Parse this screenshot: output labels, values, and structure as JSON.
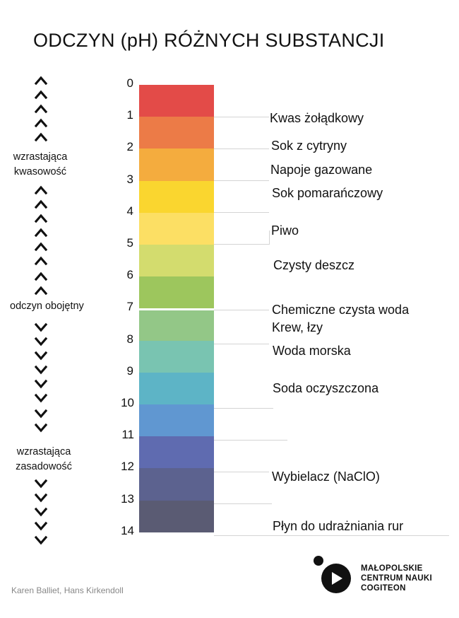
{
  "title": "ODCZYN (pH) RÓŻNYCH SUBSTANCJI",
  "scale": {
    "ticks": [
      "0",
      "1",
      "2",
      "3",
      "4",
      "5",
      "6",
      "7",
      "8",
      "9",
      "10",
      "11",
      "12",
      "13",
      "14"
    ],
    "bands": [
      {
        "from": 0,
        "to": 1,
        "color": "#e34b48"
      },
      {
        "from": 1,
        "to": 2,
        "color": "#ec7b47"
      },
      {
        "from": 2,
        "to": 3,
        "color": "#f4ac3e"
      },
      {
        "from": 3,
        "to": 4,
        "color": "#fad62f"
      },
      {
        "from": 4,
        "to": 5,
        "color": "#fcdf64"
      },
      {
        "from": 5,
        "to": 6,
        "color": "#d3dc6e"
      },
      {
        "from": 6,
        "to": 7,
        "color": "#9dc65d"
      },
      {
        "from": 7,
        "to": 8,
        "color": "#93c787"
      },
      {
        "from": 8,
        "to": 9,
        "color": "#79c4b1"
      },
      {
        "from": 9,
        "to": 10,
        "color": "#5db4c6"
      },
      {
        "from": 10,
        "to": 11,
        "color": "#6097d1"
      },
      {
        "from": 11,
        "to": 12,
        "color": "#5f6bb0"
      },
      {
        "from": 12,
        "to": 13,
        "color": "#5c628f"
      },
      {
        "from": 13,
        "to": 14,
        "color": "#5a5b73"
      }
    ]
  },
  "left_labels": {
    "acid": [
      "wzrastająca",
      "kwasowość"
    ],
    "neutral": "odczyn obojętny",
    "base": [
      "wzrastająca",
      "zasadowość"
    ]
  },
  "substances": [
    {
      "name": "Kwas żołądkowy",
      "ph": 1
    },
    {
      "name": "Sok z cytryny",
      "ph": 2
    },
    {
      "name": "Napoje gazowane",
      "ph": 2.5
    },
    {
      "name": "Sok pomarańczowy",
      "ph": 3.5
    },
    {
      "name": "Piwo",
      "ph": 4.5
    },
    {
      "name": "Czysty deszcz",
      "ph": 5.5
    },
    {
      "name": "Chemiczne czysta woda",
      "ph": 7
    },
    {
      "name": "Krew, łzy",
      "ph": 7.4
    },
    {
      "name": "Woda morska",
      "ph": 8
    },
    {
      "name": "Soda oczyszczona",
      "ph": 9
    },
    {
      "name": "Wybielacz (NaClO)",
      "ph": 12.5
    },
    {
      "name": "Płyn do udrażniania rur",
      "ph": 14
    }
  ],
  "credit": "Karen Balliet, Hans Kirkendoll",
  "logo": {
    "lines": [
      "MAŁOPOLSKIE",
      "CENTRUM NAUKI",
      "COGITEON"
    ],
    "icon": "cogiteon-logo-icon"
  }
}
